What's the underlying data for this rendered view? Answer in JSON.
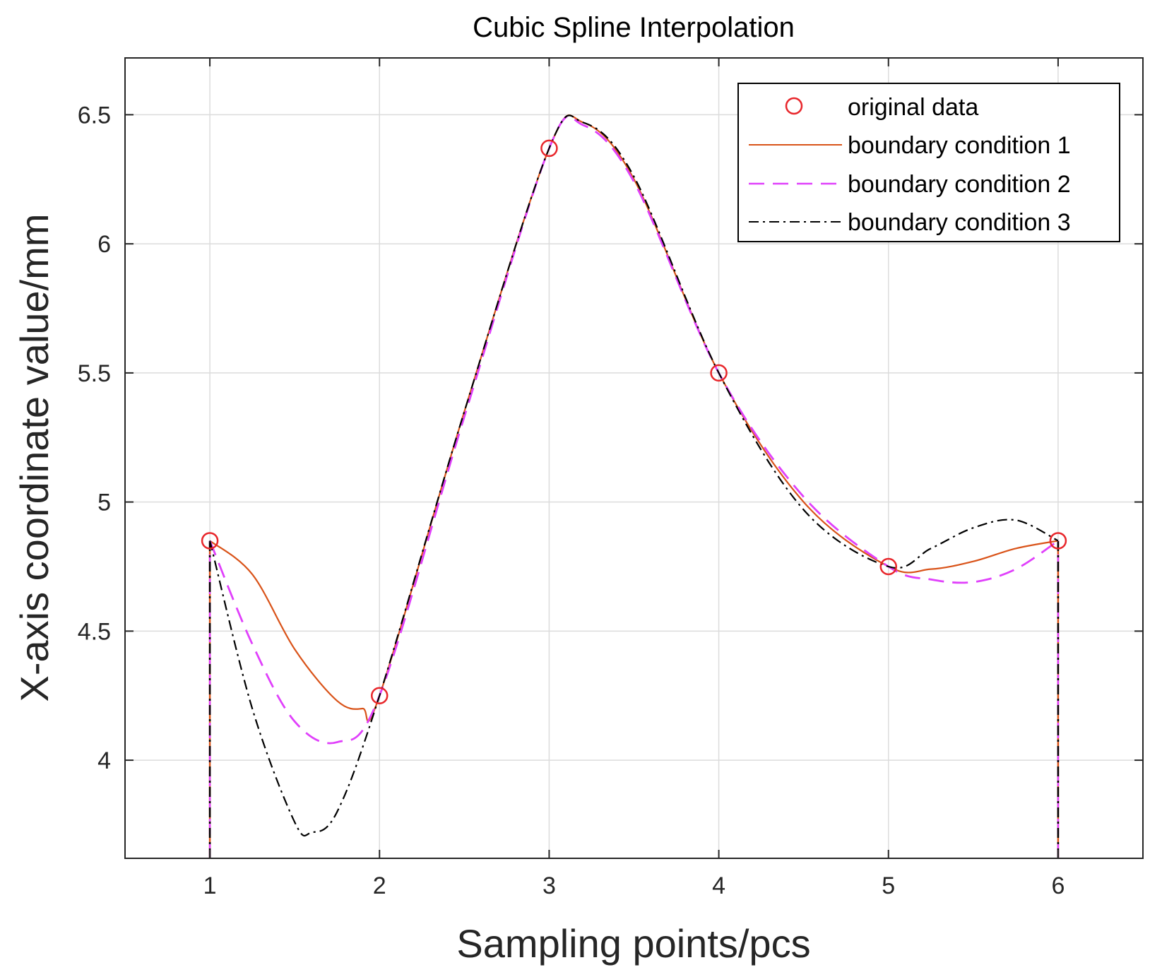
{
  "chart_data": {
    "type": "line",
    "title": "Cubic Spline Interpolation",
    "xlabel": "Sampling points/pcs",
    "ylabel": "X-axis coordinate value/mm",
    "xlim": [
      0.5,
      6.5
    ],
    "ylim": [
      3.62,
      6.72
    ],
    "xticks": [
      1,
      2,
      3,
      4,
      5,
      6
    ],
    "xtick_labels": [
      "1",
      "2",
      "3",
      "4",
      "5",
      "6"
    ],
    "yticks": [
      4,
      4.5,
      5,
      5.5,
      6,
      6.5
    ],
    "ytick_labels": [
      "4",
      "4.5",
      "5",
      "5.5",
      "6",
      "6.5"
    ],
    "grid": true,
    "legend_position": "top-right",
    "original_data": {
      "name": "original data",
      "color": "#e8262b",
      "marker": "circle",
      "x": [
        1,
        2,
        3,
        4,
        5,
        6
      ],
      "y": [
        4.85,
        4.25,
        6.37,
        5.5,
        4.75,
        4.85
      ]
    },
    "series": [
      {
        "name": "boundary condition 1",
        "color": "#d95319",
        "style": "solid",
        "x": [
          1,
          1.25,
          1.5,
          1.75,
          1.9,
          2,
          2.5,
          3,
          3.2,
          3.5,
          4,
          4.5,
          5,
          5.25,
          5.5,
          5.75,
          6
        ],
        "y": [
          4.85,
          4.72,
          4.43,
          4.23,
          4.2,
          4.25,
          5.35,
          6.37,
          6.47,
          6.25,
          5.5,
          5.0,
          4.75,
          4.74,
          4.77,
          4.82,
          4.85
        ]
      },
      {
        "name": "boundary condition 2",
        "color": "#e040fb",
        "style": "dashed",
        "x": [
          1,
          1.25,
          1.5,
          1.75,
          2,
          2.5,
          3,
          3.2,
          3.5,
          4,
          4.5,
          5,
          5.25,
          5.5,
          5.75,
          6
        ],
        "y": [
          4.85,
          4.45,
          4.15,
          4.07,
          4.25,
          5.33,
          6.37,
          6.46,
          6.24,
          5.5,
          5.02,
          4.75,
          4.7,
          4.69,
          4.74,
          4.85
        ]
      },
      {
        "name": "boundary condition 3",
        "color": "#000000",
        "style": "dashdot",
        "x": [
          1,
          1.25,
          1.5,
          1.6,
          1.75,
          2,
          2.5,
          3,
          3.2,
          3.5,
          4,
          4.5,
          5,
          5.25,
          5.5,
          5.75,
          6
        ],
        "y": [
          4.85,
          4.2,
          3.76,
          3.72,
          3.8,
          4.25,
          5.35,
          6.37,
          6.47,
          6.26,
          5.5,
          4.97,
          4.75,
          4.82,
          4.9,
          4.93,
          4.85
        ]
      }
    ],
    "end_drop_lines": {
      "x": [
        1,
        6
      ],
      "y_from": 3.62
    }
  }
}
